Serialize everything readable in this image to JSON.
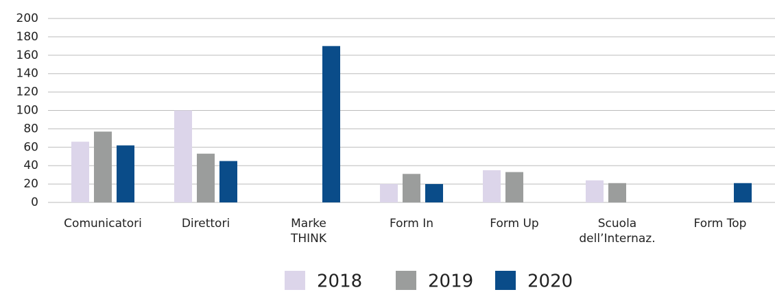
{
  "chart_data": {
    "type": "bar",
    "categories": [
      "Comunicatori",
      "Direttori",
      "Marke\nTHINK",
      "Form In",
      "Form Up",
      "Scuola\ndell’Internaz.",
      "Form Top"
    ],
    "series": [
      {
        "name": "2018",
        "color": "#dcd5ea",
        "values": [
          66,
          100,
          null,
          20,
          35,
          24,
          null
        ]
      },
      {
        "name": "2019",
        "color": "#9b9d9c",
        "values": [
          77,
          53,
          null,
          31,
          33,
          21,
          null
        ]
      },
      {
        "name": "2020",
        "color": "#0a4c89",
        "values": [
          62,
          45,
          170,
          20,
          null,
          null,
          21
        ]
      }
    ],
    "ylim": [
      0,
      200
    ],
    "yticks": [
      0,
      20,
      40,
      60,
      80,
      100,
      120,
      140,
      160,
      180,
      200
    ],
    "grid": true,
    "legend": "bottom"
  }
}
